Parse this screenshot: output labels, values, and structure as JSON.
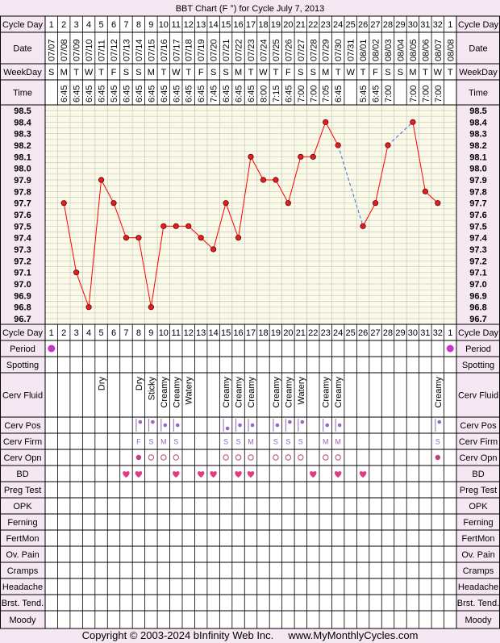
{
  "chart_data": {
    "type": "line",
    "title": "BBT Chart (F °) for Cycle July 7, 2013",
    "cycle_days": [
      1,
      2,
      3,
      4,
      5,
      6,
      7,
      8,
      9,
      10,
      11,
      12,
      13,
      14,
      15,
      16,
      17,
      18,
      19,
      20,
      21,
      22,
      23,
      24,
      25,
      26,
      27,
      28,
      29,
      30,
      31,
      32,
      1
    ],
    "dates": [
      "07/07",
      "07/08",
      "07/09",
      "07/10",
      "07/11",
      "07/12",
      "07/13",
      "07/14",
      "07/15",
      "07/16",
      "07/17",
      "07/18",
      "07/19",
      "07/20",
      "07/21",
      "07/22",
      "07/23",
      "07/24",
      "07/25",
      "07/26",
      "07/27",
      "07/28",
      "07/29",
      "07/30",
      "07/31",
      "08/01",
      "08/02",
      "08/03",
      "08/04",
      "08/05",
      "08/06",
      "08/07",
      "08/08"
    ],
    "weekdays": [
      "S",
      "M",
      "T",
      "W",
      "T",
      "F",
      "S",
      "S",
      "M",
      "T",
      "W",
      "T",
      "F",
      "S",
      "S",
      "M",
      "T",
      "W",
      "T",
      "F",
      "S",
      "S",
      "M",
      "T",
      "W",
      "T",
      "F",
      "S",
      "S",
      "M",
      "T",
      "W",
      "T"
    ],
    "times": [
      "",
      "6:45",
      "6:45",
      "6:45",
      "6:45",
      "5:45",
      "6:45",
      "6:45",
      "6:45",
      "6:45",
      "6:45",
      "6:45",
      "6:45",
      "7:45",
      "6:45",
      "6:45",
      "6:45",
      "8:00",
      "7:15",
      "6:45",
      "7:00",
      "7:00",
      "7:05",
      "6:45",
      "",
      "5:45",
      "6:45",
      "7:00",
      "",
      "7:00",
      "7:00",
      "7:00",
      ""
    ],
    "temps": [
      null,
      97.7,
      97.1,
      96.8,
      97.9,
      97.7,
      97.4,
      97.4,
      96.8,
      97.5,
      97.5,
      97.5,
      97.4,
      97.3,
      97.7,
      97.4,
      98.1,
      97.9,
      97.9,
      97.7,
      98.1,
      98.1,
      98.4,
      98.2,
      null,
      97.5,
      97.7,
      98.2,
      null,
      98.4,
      97.8,
      97.7,
      null
    ],
    "y_ticks": [
      "98.5",
      "98.4",
      "98.3",
      "98.2",
      "98.1",
      "98.0",
      "97.9",
      "97.8",
      "97.7",
      "97.6",
      "97.5",
      "97.4",
      "97.3",
      "97.2",
      "97.1",
      "97.0",
      "96.9",
      "96.8",
      "96.7"
    ],
    "ylim": [
      96.7,
      98.5
    ],
    "row_labels": {
      "cycle_day": "Cycle Day",
      "date": "Date",
      "weekday": "WeekDay",
      "time": "Time",
      "period": "Period",
      "spotting": "Spotting",
      "cerv_fluid": "Cerv Fluid",
      "cerv_pos": "Cerv Pos",
      "cerv_firm": "Cerv Firm",
      "cerv_opn": "Cerv Opn",
      "bd": "BD",
      "preg_test": "Preg Test",
      "opk": "OPK",
      "ferning": "Ferning",
      "fertmon": "FertMon",
      "ov_pain": "Ov. Pain",
      "cramps": "Cramps",
      "headache": "Headache",
      "brst_tend": "Brst. Tend.",
      "moody": "Moody"
    },
    "period_days": [
      0,
      32
    ],
    "cerv_fluid": [
      "",
      "",
      "",
      "",
      "Dry",
      "",
      "",
      "Dry",
      "Sticky",
      "Creamy",
      "Creamy",
      "Watery",
      "",
      "",
      "Creamy",
      "Creamy",
      "Creamy",
      "",
      "Creamy",
      "Creamy",
      "Watery",
      "",
      "Creamy",
      "Creamy",
      "",
      "",
      "",
      "",
      "",
      "",
      "",
      "Creamy",
      ""
    ],
    "cerv_pos": [
      "",
      "",
      "",
      "",
      "",
      "",
      "",
      "high",
      "high",
      "mid",
      "mid",
      "",
      "",
      "",
      "low",
      "mid",
      "mid",
      "",
      "mid",
      "high",
      "high",
      "",
      "mid",
      "mid",
      "",
      "",
      "",
      "",
      "",
      "",
      "",
      "high",
      ""
    ],
    "cerv_firm": [
      "",
      "",
      "",
      "",
      "",
      "",
      "",
      "F",
      "S",
      "M",
      "S",
      "",
      "",
      "",
      "S",
      "S",
      "M",
      "",
      "S",
      "S",
      "S",
      "",
      "M",
      "M",
      "",
      "",
      "",
      "",
      "",
      "",
      "",
      "S",
      ""
    ],
    "cerv_opn": [
      "",
      "",
      "",
      "",
      "",
      "",
      "",
      "closed",
      "open",
      "open",
      "open",
      "",
      "",
      "",
      "open",
      "open",
      "open",
      "",
      "open",
      "open",
      "open",
      "",
      "open",
      "open",
      "",
      "",
      "",
      "",
      "",
      "",
      "",
      "closed",
      ""
    ],
    "bd_days": [
      6,
      7,
      10,
      12,
      13,
      15,
      16,
      21,
      23,
      25
    ],
    "colors": {
      "line": "#ff0000",
      "dashed": "#4169e1",
      "grid_bg": "#fafae6",
      "grid_line": "#c8c8c8",
      "period": "#cc33cc",
      "heart": "#e03c82",
      "cp_marker": "#9467bd",
      "firm_text": "#9467bd"
    },
    "footer": "Copyright © 2003-2024 bInfinity Web Inc.     www.MyMonthlyCycles.com"
  }
}
